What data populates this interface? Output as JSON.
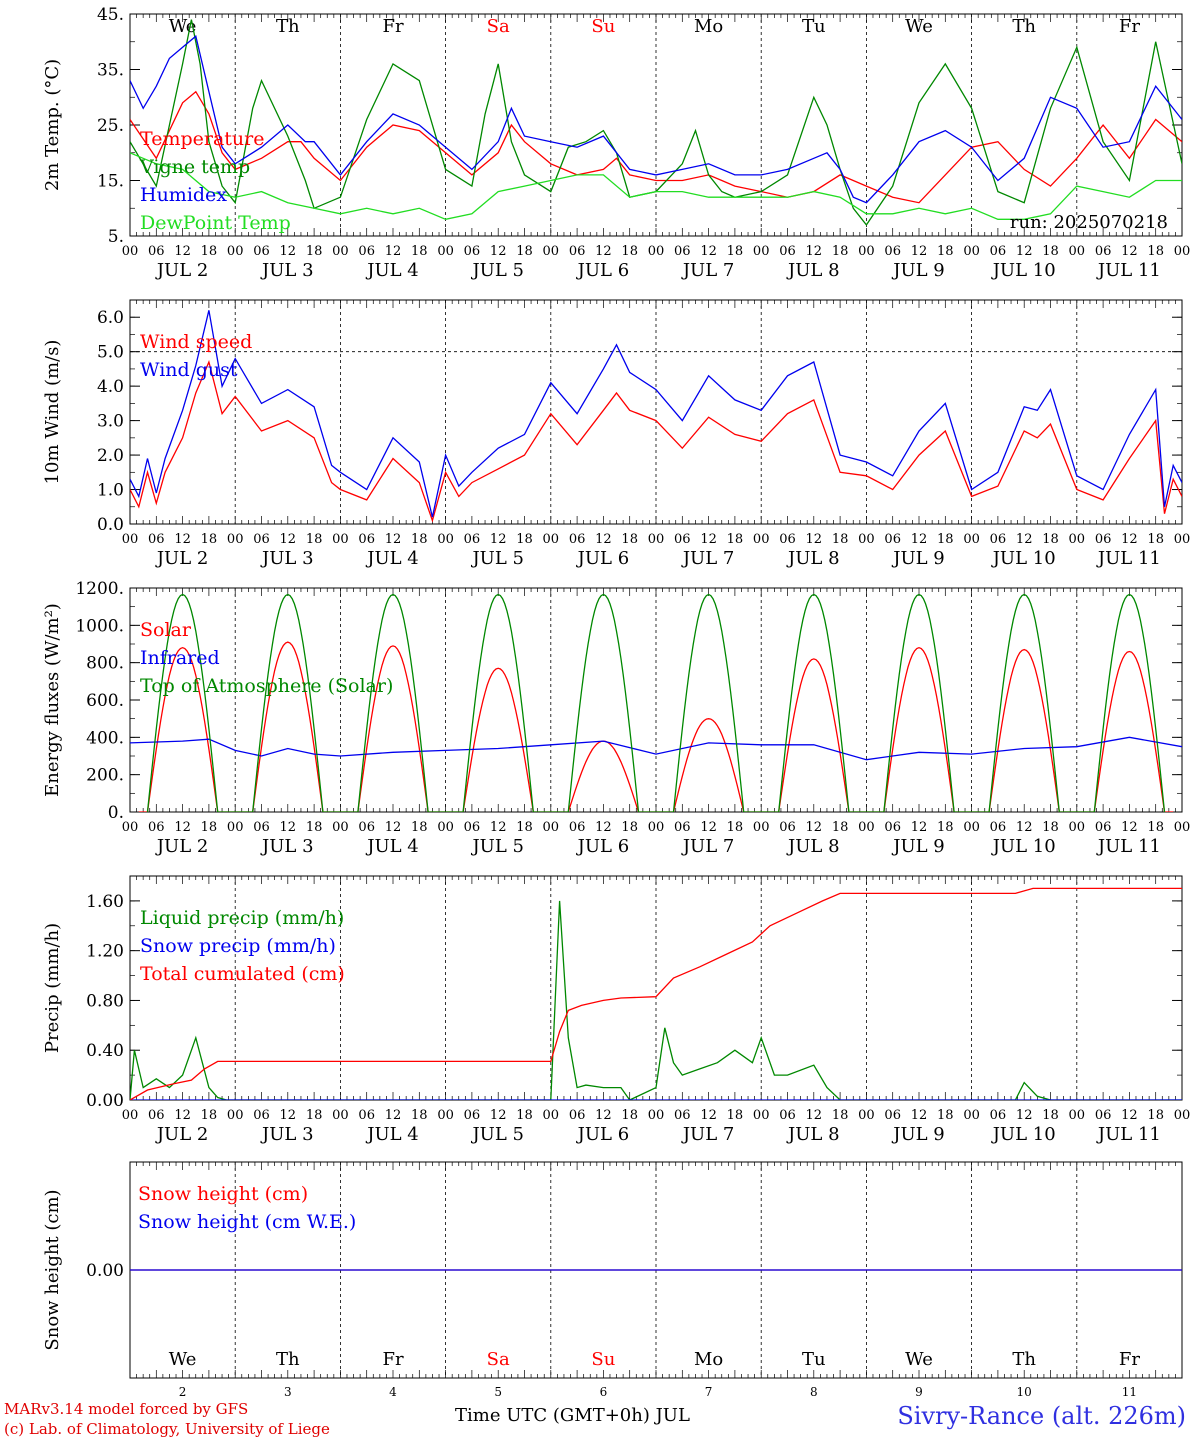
{
  "run": "run: 2025070218",
  "footer": {
    "credit_line1": "MARv3.14 model forced by GFS",
    "credit_line2": "(c) Lab. of Climatology, University of Liege",
    "x_title": "Time UTC (GMT+0h) JUL",
    "station": "Sivry-Rance (alt. 226m)"
  },
  "colors": {
    "red": "#ff0000",
    "green": "#008800",
    "blue": "#0000ee",
    "lightgreen": "#22dd22",
    "weekend": "#ff0000"
  },
  "days": [
    {
      "dow": "We",
      "date": "JUL  2",
      "num": "2",
      "weekend": false
    },
    {
      "dow": "Th",
      "date": "JUL  3",
      "num": "3",
      "weekend": false
    },
    {
      "dow": "Fr",
      "date": "JUL  4",
      "num": "4",
      "weekend": false
    },
    {
      "dow": "Sa",
      "date": "JUL  5",
      "num": "5",
      "weekend": true
    },
    {
      "dow": "Su",
      "date": "JUL  6",
      "num": "6",
      "weekend": true
    },
    {
      "dow": "Mo",
      "date": "JUL  7",
      "num": "7",
      "weekend": false
    },
    {
      "dow": "Tu",
      "date": "JUL  8",
      "num": "8",
      "weekend": false
    },
    {
      "dow": "We",
      "date": "JUL  9",
      "num": "9",
      "weekend": false
    },
    {
      "dow": "Th",
      "date": "JUL 10",
      "num": "10",
      "weekend": false
    },
    {
      "dow": "Fr",
      "date": "JUL 11",
      "num": "11",
      "weekend": false
    }
  ],
  "hour_ticks": [
    "00",
    "06",
    "12",
    "18"
  ],
  "chart_data": [
    {
      "type": "line",
      "ylabel": "2m Temp. (°C)",
      "ylim": [
        5,
        45
      ],
      "yticks": [
        5,
        15,
        25,
        35,
        45
      ],
      "ytick_labels": [
        "5.",
        "15.",
        "25.",
        "35.",
        "45."
      ],
      "x_unit": "hours since JUL 2 00 UTC",
      "xlim": [
        0,
        240
      ],
      "series": [
        {
          "name": "Temperature",
          "color": "red",
          "x": [
            0,
            6,
            12,
            15,
            18,
            21,
            24,
            30,
            36,
            39,
            42,
            48,
            54,
            60,
            66,
            72,
            78,
            84,
            87,
            90,
            96,
            102,
            108,
            111,
            114,
            120,
            126,
            132,
            135,
            138,
            144,
            150,
            156,
            162,
            168,
            174,
            180,
            186,
            192,
            198,
            204,
            210,
            216,
            222,
            228,
            234,
            240
          ],
          "y": [
            26,
            19,
            29,
            31,
            27,
            20,
            17,
            19,
            22,
            22,
            19,
            15,
            21,
            25,
            24,
            20,
            16,
            20,
            25,
            22,
            18,
            16,
            17,
            19,
            16,
            15,
            15,
            16,
            15,
            14,
            13,
            12,
            13,
            16,
            14,
            12,
            11,
            16,
            21,
            22,
            17,
            14,
            19,
            25,
            19,
            26,
            22
          ]
        },
        {
          "name": "Vigne temp",
          "color": "green",
          "x": [
            0,
            6,
            12,
            14,
            16,
            18,
            21,
            24,
            28,
            30,
            36,
            40,
            42,
            48,
            54,
            60,
            66,
            72,
            78,
            81,
            84,
            87,
            90,
            96,
            100,
            104,
            108,
            111,
            114,
            120,
            126,
            129,
            132,
            135,
            138,
            144,
            150,
            156,
            159,
            162,
            165,
            168,
            174,
            180,
            186,
            192,
            198,
            204,
            210,
            216,
            222,
            228,
            234,
            240
          ],
          "y": [
            22,
            14,
            36,
            44,
            36,
            22,
            14,
            11,
            28,
            33,
            23,
            15,
            10,
            12,
            26,
            36,
            33,
            17,
            14,
            27,
            36,
            22,
            16,
            13,
            21,
            22,
            24,
            20,
            12,
            13,
            18,
            24,
            16,
            13,
            12,
            13,
            16,
            30,
            25,
            17,
            10,
            7,
            14,
            29,
            36,
            28,
            13,
            11,
            28,
            39,
            22,
            15,
            40,
            18
          ]
        },
        {
          "name": "Humidex",
          "color": "blue",
          "x": [
            0,
            3,
            6,
            9,
            12,
            15,
            18,
            21,
            24,
            30,
            36,
            40,
            42,
            48,
            54,
            60,
            66,
            72,
            78,
            84,
            87,
            90,
            96,
            102,
            108,
            114,
            120,
            126,
            132,
            138,
            144,
            150,
            156,
            159,
            162,
            165,
            168,
            174,
            180,
            186,
            192,
            198,
            204,
            210,
            216,
            222,
            228,
            234,
            240
          ],
          "y": [
            33,
            28,
            32,
            37,
            39,
            41,
            31,
            21,
            18,
            21,
            25,
            22,
            22,
            16,
            22,
            27,
            25,
            21,
            17,
            22,
            28,
            23,
            22,
            21,
            23,
            17,
            16,
            17,
            18,
            16,
            16,
            17,
            19,
            20,
            17,
            12,
            11,
            16,
            22,
            24,
            21,
            15,
            19,
            30,
            28,
            21,
            22,
            32,
            26
          ]
        },
        {
          "name": "DewPoint Temp",
          "color": "lightgreen",
          "x": [
            0,
            6,
            12,
            18,
            24,
            30,
            36,
            42,
            48,
            54,
            60,
            66,
            72,
            78,
            84,
            90,
            96,
            102,
            108,
            114,
            120,
            126,
            132,
            138,
            144,
            150,
            156,
            162,
            168,
            174,
            180,
            186,
            192,
            198,
            204,
            210,
            216,
            222,
            228,
            234,
            240
          ],
          "y": [
            20,
            18,
            17,
            13,
            12,
            13,
            11,
            10,
            9,
            10,
            9,
            10,
            8,
            9,
            13,
            14,
            15,
            16,
            16,
            12,
            13,
            13,
            12,
            12,
            12,
            12,
            13,
            12,
            9,
            9,
            10,
            9,
            10,
            8,
            8,
            9,
            14,
            13,
            12,
            15,
            15
          ]
        }
      ]
    },
    {
      "type": "line",
      "ylabel": "10m Wind (m/s)",
      "ylim": [
        0,
        6.5
      ],
      "yticks": [
        0,
        1,
        2,
        3,
        4,
        5,
        6
      ],
      "ytick_labels": [
        "0.0",
        "1.0",
        "2.0",
        "3.0",
        "4.0",
        "5.0",
        "6.0"
      ],
      "hline": 5.0,
      "xlim": [
        0,
        240
      ],
      "series": [
        {
          "name": "Wind speed",
          "color": "red",
          "x": [
            0,
            2,
            4,
            6,
            8,
            12,
            15,
            18,
            21,
            24,
            30,
            36,
            42,
            46,
            48,
            54,
            60,
            66,
            69,
            72,
            75,
            78,
            84,
            90,
            96,
            102,
            108,
            111,
            114,
            120,
            126,
            132,
            138,
            144,
            150,
            156,
            162,
            168,
            174,
            180,
            186,
            192,
            198,
            204,
            207,
            210,
            216,
            222,
            228,
            234,
            236,
            238,
            240
          ],
          "y": [
            1.0,
            0.5,
            1.5,
            0.6,
            1.5,
            2.5,
            3.8,
            4.7,
            3.2,
            3.7,
            2.7,
            3.0,
            2.5,
            1.2,
            1.0,
            0.7,
            1.9,
            1.2,
            0.1,
            1.5,
            0.8,
            1.2,
            1.6,
            2.0,
            3.2,
            2.3,
            3.3,
            3.8,
            3.3,
            3.0,
            2.2,
            3.1,
            2.6,
            2.4,
            3.2,
            3.6,
            1.5,
            1.4,
            1.0,
            2.0,
            2.7,
            0.8,
            1.1,
            2.7,
            2.5,
            2.9,
            1.0,
            0.7,
            1.9,
            3.0,
            0.3,
            1.3,
            0.8
          ]
        },
        {
          "name": "Wind gust",
          "color": "blue",
          "x": [
            0,
            2,
            4,
            6,
            8,
            12,
            15,
            18,
            21,
            24,
            30,
            36,
            42,
            46,
            48,
            54,
            60,
            66,
            69,
            72,
            75,
            78,
            84,
            90,
            96,
            102,
            108,
            111,
            114,
            120,
            126,
            132,
            138,
            144,
            150,
            156,
            162,
            168,
            174,
            180,
            186,
            192,
            198,
            204,
            207,
            210,
            216,
            222,
            228,
            234,
            236,
            238,
            240
          ],
          "y": [
            1.3,
            0.8,
            1.9,
            0.9,
            1.9,
            3.3,
            4.6,
            6.2,
            4.0,
            4.8,
            3.5,
            3.9,
            3.4,
            1.7,
            1.5,
            1.0,
            2.5,
            1.8,
            0.2,
            2.0,
            1.1,
            1.5,
            2.2,
            2.6,
            4.1,
            3.2,
            4.5,
            5.2,
            4.4,
            3.9,
            3.0,
            4.3,
            3.6,
            3.3,
            4.3,
            4.7,
            2.0,
            1.8,
            1.4,
            2.7,
            3.5,
            1.0,
            1.5,
            3.4,
            3.3,
            3.9,
            1.4,
            1.0,
            2.6,
            3.9,
            0.5,
            1.7,
            1.2
          ]
        }
      ]
    },
    {
      "type": "line",
      "ylabel": "Energy fluxes (W/m²)",
      "ylim": [
        0,
        1200
      ],
      "yticks": [
        0,
        200,
        400,
        600,
        800,
        1000,
        1200
      ],
      "ytick_labels": [
        "0.",
        "200.",
        "400.",
        "600.",
        "800.",
        "1000.",
        "1200."
      ],
      "xlim": [
        0,
        240
      ],
      "series": [
        {
          "name": "Solar",
          "color": "red",
          "peaks": [
            [
              12,
              880
            ],
            [
              36,
              910
            ],
            [
              60,
              890
            ],
            [
              84,
              770
            ],
            [
              108,
              380
            ],
            [
              132,
              500
            ],
            [
              156,
              820
            ],
            [
              180,
              880
            ],
            [
              204,
              870
            ],
            [
              228,
              860
            ]
          ]
        },
        {
          "name": "Infrared",
          "color": "blue",
          "x": [
            0,
            12,
            18,
            24,
            30,
            36,
            42,
            48,
            60,
            72,
            84,
            96,
            108,
            120,
            132,
            144,
            156,
            168,
            180,
            192,
            204,
            216,
            228,
            240
          ],
          "y": [
            370,
            380,
            390,
            330,
            300,
            340,
            310,
            300,
            320,
            330,
            340,
            360,
            380,
            310,
            370,
            360,
            360,
            280,
            320,
            310,
            340,
            350,
            400,
            350
          ]
        },
        {
          "name": "Top of Atmosphere (Solar)",
          "color": "green",
          "peak": 1165,
          "rise_hour": 4,
          "set_hour": 20
        }
      ]
    },
    {
      "type": "line",
      "ylabel": "Precip (mm/h)",
      "ylim": [
        0,
        1.8
      ],
      "yticks": [
        0,
        0.4,
        0.8,
        1.2,
        1.6
      ],
      "ytick_labels": [
        "0.00",
        "0.40",
        "0.80",
        "1.20",
        "1.60"
      ],
      "xlim": [
        0,
        240
      ],
      "series": [
        {
          "name": "Liquid precip (mm/h)",
          "color": "green",
          "x": [
            0,
            1,
            3,
            6,
            9,
            12,
            15,
            18,
            20,
            22,
            96,
            98,
            100,
            102,
            104,
            108,
            112,
            114,
            120,
            122,
            124,
            126,
            130,
            134,
            138,
            142,
            144,
            147,
            150,
            156,
            159,
            162,
            202,
            204,
            207,
            210,
            240
          ],
          "y": [
            0,
            0.4,
            0.1,
            0.17,
            0.1,
            0.2,
            0.5,
            0.1,
            0.02,
            0,
            0,
            1.6,
            0.5,
            0.1,
            0.12,
            0.1,
            0.1,
            0,
            0.1,
            0.58,
            0.3,
            0.2,
            0.25,
            0.3,
            0.4,
            0.3,
            0.5,
            0.2,
            0.2,
            0.28,
            0.1,
            0,
            0,
            0.14,
            0.03,
            0,
            0
          ]
        },
        {
          "name": "Snow precip (mm/h)",
          "color": "blue",
          "x": [
            0,
            240
          ],
          "y": [
            0,
            0
          ]
        },
        {
          "name": "Total cumulated (cm)",
          "color": "red",
          "x": [
            0,
            4,
            10,
            14,
            17,
            20,
            96,
            98,
            100,
            103,
            108,
            112,
            120,
            124,
            130,
            136,
            142,
            146,
            152,
            158,
            162,
            202,
            206,
            240
          ],
          "y": [
            0,
            0.08,
            0.13,
            0.16,
            0.25,
            0.31,
            0.31,
            0.55,
            0.72,
            0.76,
            0.8,
            0.82,
            0.83,
            0.98,
            1.07,
            1.17,
            1.27,
            1.4,
            1.5,
            1.6,
            1.66,
            1.66,
            1.7,
            1.7
          ]
        }
      ]
    },
    {
      "type": "line",
      "ylabel": "Snow height (cm)",
      "ylim": [
        -1,
        1
      ],
      "yticks": [
        0
      ],
      "ytick_labels": [
        "0.00"
      ],
      "xlim": [
        0,
        240
      ],
      "series": [
        {
          "name": "Snow height (cm)",
          "color": "red",
          "x": [
            0,
            240
          ],
          "y": [
            0,
            0
          ]
        },
        {
          "name": "Snow height (cm W.E.)",
          "color": "blue",
          "x": [
            0,
            240
          ],
          "y": [
            0,
            0
          ]
        }
      ]
    }
  ]
}
